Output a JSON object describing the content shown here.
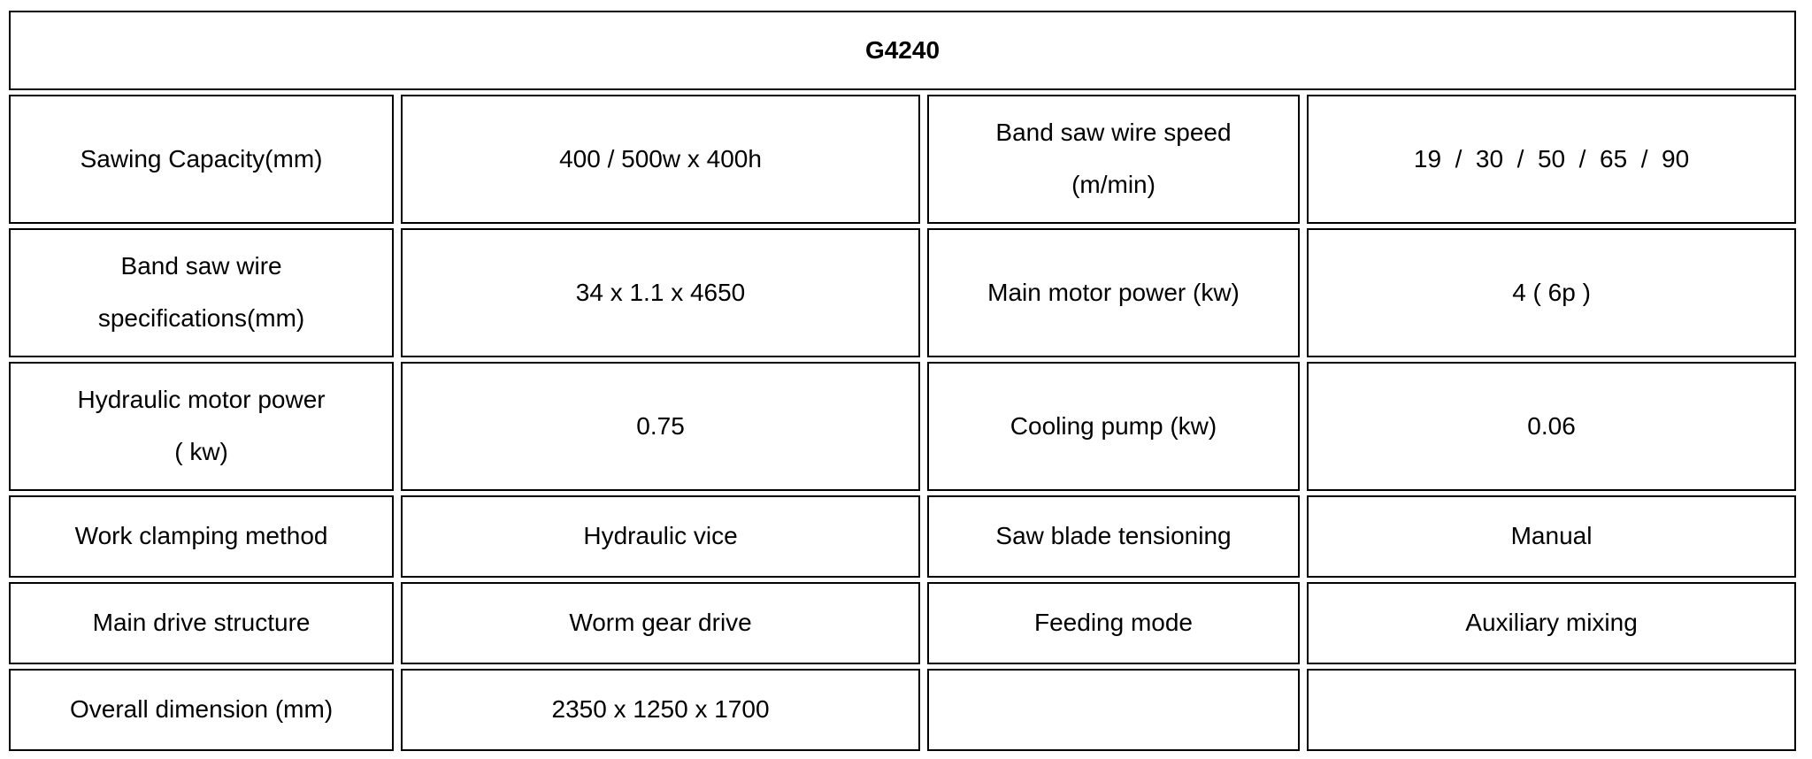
{
  "page": {
    "background_color": "#ffffff",
    "border_color": "#000000",
    "text_color": "#000000"
  },
  "table": {
    "title": "G4240",
    "rows": [
      {
        "cells": [
          "Sawing Capacity(mm)",
          "400 / 500w x 400h",
          "Band saw wire speed\n(m/min)",
          "19  /  30  /  50  /  65  /  90"
        ]
      },
      {
        "cells": [
          "Band saw wire\nspecifications(mm)",
          "34 x 1.1 x 4650",
          "Main motor power (kw)",
          "4 ( 6p )"
        ]
      },
      {
        "cells": [
          "Hydraulic motor power\n( kw)",
          "0.75",
          "Cooling pump (kw)",
          "0.06"
        ]
      },
      {
        "cells": [
          "Work clamping method",
          "Hydraulic vice",
          "Saw blade tensioning",
          "Manual"
        ]
      },
      {
        "cells": [
          "Main drive structure",
          "Worm gear drive",
          "Feeding mode",
          "Auxiliary mixing"
        ]
      },
      {
        "cells": [
          "Overall dimension (mm)",
          "2350 x 1250 x 1700",
          "",
          ""
        ]
      }
    ]
  }
}
